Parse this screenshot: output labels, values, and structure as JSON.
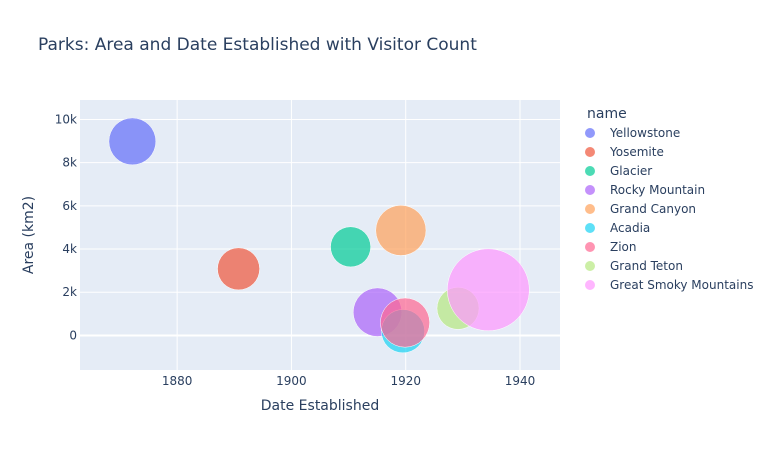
{
  "chart_data": {
    "type": "scatter",
    "title": "Parks: Area and Date Established with Visitor Count",
    "xlabel": "Date Established",
    "ylabel": "Area (km2)",
    "legend_title": "name",
    "legend_position": "right",
    "grid": true,
    "xlim": [
      "1863-01-01",
      "1947-01-01"
    ],
    "ylim": [
      -1600,
      10900
    ],
    "x_ticks": [
      {
        "value": "1880-01-01",
        "label": "1880"
      },
      {
        "value": "1900-01-01",
        "label": "1900"
      },
      {
        "value": "1920-01-01",
        "label": "1920"
      },
      {
        "value": "1940-01-01",
        "label": "1940"
      }
    ],
    "y_ticks": [
      {
        "value": 0,
        "label": "0"
      },
      {
        "value": 2000,
        "label": "2k"
      },
      {
        "value": 4000,
        "label": "4k"
      },
      {
        "value": 6000,
        "label": "6k"
      },
      {
        "value": 8000,
        "label": "8k"
      },
      {
        "value": 10000,
        "label": "10k"
      }
    ],
    "series": [
      {
        "name": "Yellowstone",
        "color": "#636efa",
        "x": "1872-03-01",
        "y": 8983,
        "visitors": 4.1
      },
      {
        "name": "Yosemite",
        "color": "#EF553B",
        "x": "1890-10-01",
        "y": 3082,
        "visitors": 3.3
      },
      {
        "name": "Glacier",
        "color": "#00cc96",
        "x": "1910-05-11",
        "y": 4101,
        "visitors": 3.0
      },
      {
        "name": "Rocky Mountain",
        "color": "#ab63fa",
        "x": "1915-01-26",
        "y": 1076,
        "visitors": 4.4
      },
      {
        "name": "Grand Canyon",
        "color": "#FFA15A",
        "x": "1919-02-26",
        "y": 4862,
        "visitors": 4.7
      },
      {
        "name": "Acadia",
        "color": "#19d3f3",
        "x": "1919-07-08",
        "y": 198,
        "visitors": 3.5
      },
      {
        "name": "Zion",
        "color": "#FF6692",
        "x": "1919-11-19",
        "y": 595,
        "visitors": 4.5
      },
      {
        "name": "Grand Teton",
        "color": "#B6E880",
        "x": "1929-02-26",
        "y": 1255,
        "visitors": 3.3
      },
      {
        "name": "Great Smoky Mountains",
        "color": "#FF97FF",
        "x": "1934-06-15",
        "y": 2114,
        "visitors": 12.5
      }
    ]
  }
}
